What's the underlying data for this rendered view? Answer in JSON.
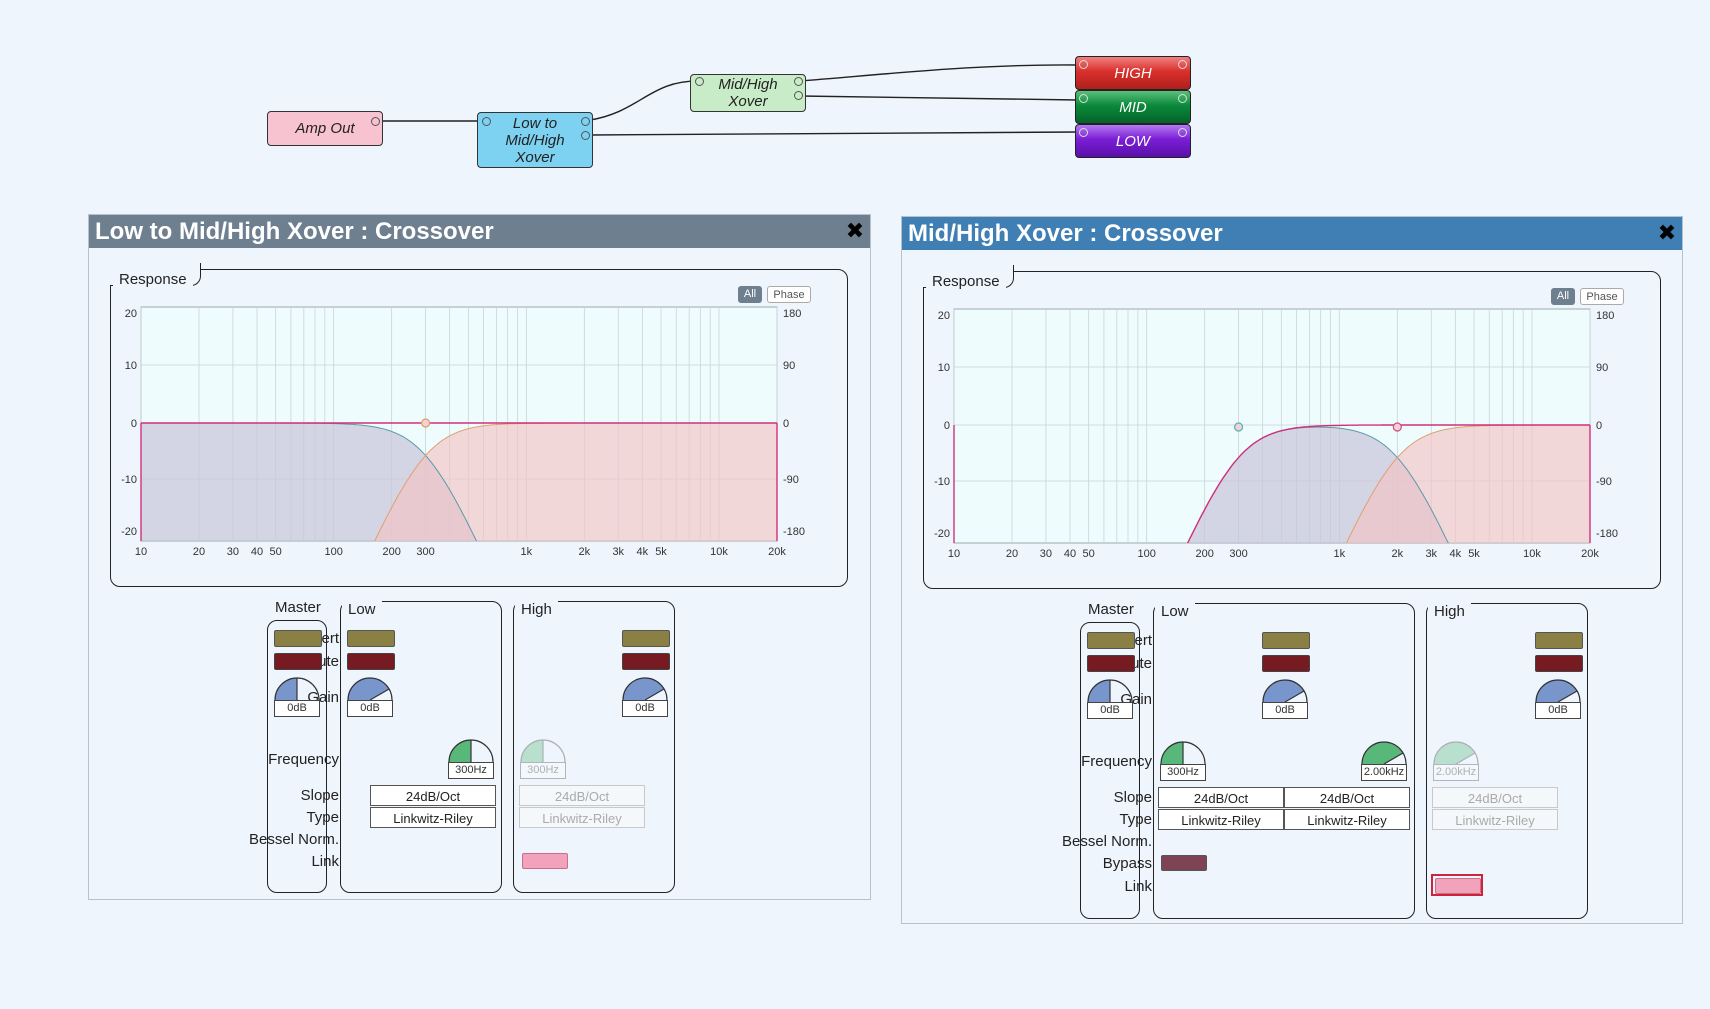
{
  "graph": {
    "amp_out": "Amp Out",
    "xover1": "Low to\nMid/High\nXover",
    "xover2": "Mid/High\nXover",
    "high": "HIGH",
    "mid": "MID",
    "low": "LOW",
    "colors": {
      "amp_out": "#f7c3d0",
      "xover1": "#7dd1f1",
      "xover2": "#c8ecc8",
      "high": "#d9302c",
      "mid": "#0a8a3a",
      "low": "#7a1ed6"
    }
  },
  "window1": {
    "title": "Low to Mid/High Xover : Crossover",
    "title_bg": "#6e7f8f",
    "response_tab": "Response",
    "btn_all": "All",
    "btn_phase": "Phase",
    "y_ticks_left": [
      "20",
      "10",
      "0",
      "-10",
      "-20"
    ],
    "y_ticks_right": [
      "180",
      "90",
      "0",
      "-90",
      "-180"
    ],
    "x_ticks": [
      "10",
      "20",
      "30",
      "40",
      "50",
      "100",
      "200",
      "300",
      "1k",
      "2k",
      "3k",
      "4k",
      "5k",
      "10k",
      "20k"
    ],
    "sections": {
      "master": "Master",
      "low": "Low",
      "high": "High"
    },
    "row_labels": {
      "invert": "Invert",
      "mute": "Mute",
      "gain": "Gain",
      "frequency": "Frequency",
      "slope": "Slope",
      "type": "Type",
      "bessel": "Bessel Norm.",
      "link": "Link"
    },
    "master_gain": "0dB",
    "low_gain": "0dB",
    "high_gain": "0dB",
    "low_freq": "300Hz",
    "high_freq": "300Hz",
    "low_slope": "24dB/Oct",
    "low_type": "Linkwitz-Riley",
    "high_slope": "24dB/Oct",
    "high_type": "Linkwitz-Riley"
  },
  "window2": {
    "title": "Mid/High Xover : Crossover",
    "title_bg": "#3f7fb3",
    "response_tab": "Response",
    "btn_all": "All",
    "btn_phase": "Phase",
    "y_ticks_left": [
      "20",
      "10",
      "0",
      "-10",
      "-20"
    ],
    "y_ticks_right": [
      "180",
      "90",
      "0",
      "-90",
      "-180"
    ],
    "x_ticks": [
      "10",
      "20",
      "30",
      "40",
      "50",
      "100",
      "200",
      "300",
      "1k",
      "2k",
      "3k",
      "4k",
      "5k",
      "10k",
      "20k"
    ],
    "sections": {
      "master": "Master",
      "low": "Low",
      "high": "High"
    },
    "row_labels": {
      "invert": "Invert",
      "mute": "Mute",
      "gain": "Gain",
      "frequency": "Frequency",
      "slope": "Slope",
      "type": "Type",
      "bessel": "Bessel Norm.",
      "bypass": "Bypass",
      "link": "Link"
    },
    "master_gain": "0dB",
    "low_gain": "0dB",
    "high_gain": "0dB",
    "low_freq_a": "300Hz",
    "low_freq_b": "2.00kHz",
    "high_freq": "2.00kHz",
    "low_slope_a": "24dB/Oct",
    "low_slope_b": "24dB/Oct",
    "low_type_a": "Linkwitz-Riley",
    "low_type_b": "Linkwitz-Riley",
    "high_slope": "24dB/Oct",
    "high_type": "Linkwitz-Riley"
  }
}
